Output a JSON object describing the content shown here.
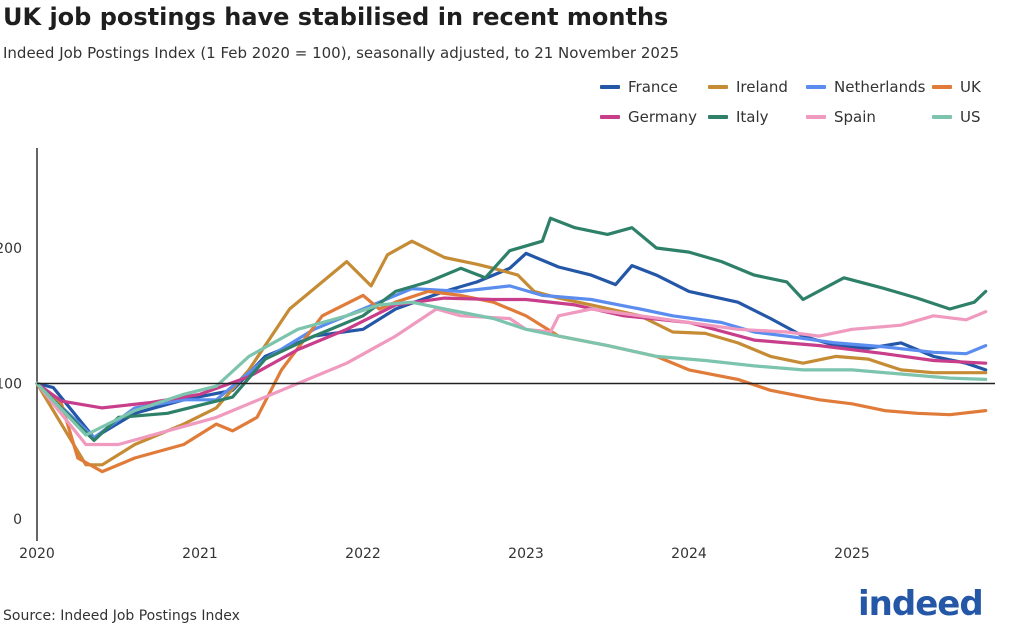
{
  "title": "UK job postings have stabilised in recent months",
  "subtitle": "Indeed Job Postings Index (1 Feb 2020 = 100), seasonally adjusted, to 21 November 2025",
  "source": "Source: Indeed Job Postings Index",
  "logo_text": "indeed",
  "chart_data": {
    "type": "line",
    "title": "UK job postings have stabilised in recent months",
    "xlabel": "",
    "ylabel": "",
    "xlim": [
      2020,
      2025.9
    ],
    "ylim": [
      0,
      273
    ],
    "x_ticks": [
      "2020",
      "2021",
      "2022",
      "2023",
      "2024",
      "2025"
    ],
    "y_ticks": [
      "0",
      "100",
      "200"
    ],
    "reference_line": 100,
    "grid": false,
    "legend_placement": "top-right",
    "series": [
      {
        "name": "France",
        "color": "#2457a8",
        "points": [
          [
            2020,
            100
          ],
          [
            2020.1,
            97
          ],
          [
            2020.35,
            60
          ],
          [
            2020.6,
            78
          ],
          [
            2020.9,
            88
          ],
          [
            2021.2,
            95
          ],
          [
            2021.4,
            120
          ],
          [
            2021.7,
            135
          ],
          [
            2022,
            140
          ],
          [
            2022.2,
            155
          ],
          [
            2022.5,
            168
          ],
          [
            2022.7,
            175
          ],
          [
            2022.9,
            185
          ],
          [
            2023.0,
            196
          ],
          [
            2023.2,
            186
          ],
          [
            2023.4,
            180
          ],
          [
            2023.55,
            173
          ],
          [
            2023.65,
            187
          ],
          [
            2023.8,
            180
          ],
          [
            2024.0,
            168
          ],
          [
            2024.3,
            160
          ],
          [
            2024.5,
            148
          ],
          [
            2024.7,
            135
          ],
          [
            2024.9,
            128
          ],
          [
            2025.1,
            126
          ],
          [
            2025.3,
            130
          ],
          [
            2025.5,
            120
          ],
          [
            2025.7,
            115
          ],
          [
            2025.82,
            110
          ]
        ]
      },
      {
        "name": "Ireland",
        "color": "#c58b35",
        "points": [
          [
            2020,
            100
          ],
          [
            2020.3,
            40
          ],
          [
            2020.4,
            40
          ],
          [
            2020.6,
            55
          ],
          [
            2020.9,
            70
          ],
          [
            2021.1,
            82
          ],
          [
            2021.3,
            110
          ],
          [
            2021.55,
            155
          ],
          [
            2021.8,
            180
          ],
          [
            2021.9,
            190
          ],
          [
            2022.05,
            172
          ],
          [
            2022.15,
            195
          ],
          [
            2022.3,
            205
          ],
          [
            2022.5,
            193
          ],
          [
            2022.7,
            188
          ],
          [
            2022.8,
            185
          ],
          [
            2022.95,
            180
          ],
          [
            2023.05,
            168
          ],
          [
            2023.2,
            163
          ],
          [
            2023.4,
            158
          ],
          [
            2023.7,
            150
          ],
          [
            2023.9,
            138
          ],
          [
            2024.1,
            137
          ],
          [
            2024.3,
            130
          ],
          [
            2024.5,
            120
          ],
          [
            2024.7,
            115
          ],
          [
            2024.9,
            120
          ],
          [
            2025.1,
            118
          ],
          [
            2025.3,
            110
          ],
          [
            2025.5,
            108
          ],
          [
            2025.7,
            108
          ],
          [
            2025.82,
            108
          ]
        ]
      },
      {
        "name": "Netherlands",
        "color": "#5b8def",
        "points": [
          [
            2020,
            100
          ],
          [
            2020.35,
            60
          ],
          [
            2020.6,
            82
          ],
          [
            2020.9,
            88
          ],
          [
            2021.1,
            88
          ],
          [
            2021.4,
            118
          ],
          [
            2021.7,
            140
          ],
          [
            2022,
            155
          ],
          [
            2022.3,
            170
          ],
          [
            2022.6,
            168
          ],
          [
            2022.9,
            172
          ],
          [
            2023.1,
            165
          ],
          [
            2023.4,
            162
          ],
          [
            2023.7,
            155
          ],
          [
            2023.9,
            150
          ],
          [
            2024.2,
            145
          ],
          [
            2024.4,
            138
          ],
          [
            2024.6,
            135
          ],
          [
            2024.9,
            130
          ],
          [
            2025.2,
            127
          ],
          [
            2025.5,
            123
          ],
          [
            2025.7,
            122
          ],
          [
            2025.82,
            128
          ]
        ]
      },
      {
        "name": "UK",
        "color": "#e07b39",
        "points": [
          [
            2020,
            100
          ],
          [
            2020.15,
            85
          ],
          [
            2020.25,
            45
          ],
          [
            2020.4,
            35
          ],
          [
            2020.6,
            45
          ],
          [
            2020.9,
            55
          ],
          [
            2021.1,
            70
          ],
          [
            2021.2,
            65
          ],
          [
            2021.35,
            75
          ],
          [
            2021.5,
            110
          ],
          [
            2021.75,
            150
          ],
          [
            2022.0,
            165
          ],
          [
            2022.1,
            155
          ],
          [
            2022.2,
            160
          ],
          [
            2022.4,
            168
          ],
          [
            2022.6,
            165
          ],
          [
            2022.8,
            160
          ],
          [
            2023.0,
            150
          ],
          [
            2023.2,
            135
          ],
          [
            2023.5,
            128
          ],
          [
            2023.8,
            120
          ],
          [
            2024.0,
            110
          ],
          [
            2024.3,
            103
          ],
          [
            2024.5,
            95
          ],
          [
            2024.8,
            88
          ],
          [
            2025.0,
            85
          ],
          [
            2025.2,
            80
          ],
          [
            2025.4,
            78
          ],
          [
            2025.6,
            77
          ],
          [
            2025.82,
            80
          ]
        ]
      },
      {
        "name": "Germany",
        "color": "#c83e8a",
        "points": [
          [
            2020,
            100
          ],
          [
            2020.15,
            87
          ],
          [
            2020.4,
            82
          ],
          [
            2020.7,
            86
          ],
          [
            2021.0,
            92
          ],
          [
            2021.3,
            105
          ],
          [
            2021.6,
            125
          ],
          [
            2021.9,
            140
          ],
          [
            2022.2,
            158
          ],
          [
            2022.5,
            163
          ],
          [
            2022.8,
            162
          ],
          [
            2023.0,
            162
          ],
          [
            2023.3,
            158
          ],
          [
            2023.6,
            150
          ],
          [
            2024.0,
            145
          ],
          [
            2024.4,
            132
          ],
          [
            2024.8,
            128
          ],
          [
            2025.2,
            122
          ],
          [
            2025.5,
            117
          ],
          [
            2025.82,
            115
          ]
        ]
      },
      {
        "name": "Italy",
        "color": "#2e8069",
        "points": [
          [
            2020,
            100
          ],
          [
            2020.35,
            58
          ],
          [
            2020.5,
            75
          ],
          [
            2020.8,
            78
          ],
          [
            2021.2,
            90
          ],
          [
            2021.4,
            118
          ],
          [
            2021.7,
            135
          ],
          [
            2022,
            150
          ],
          [
            2022.2,
            168
          ],
          [
            2022.4,
            175
          ],
          [
            2022.6,
            185
          ],
          [
            2022.75,
            178
          ],
          [
            2022.9,
            198
          ],
          [
            2023.1,
            205
          ],
          [
            2023.15,
            222
          ],
          [
            2023.3,
            215
          ],
          [
            2023.5,
            210
          ],
          [
            2023.65,
            215
          ],
          [
            2023.8,
            200
          ],
          [
            2024.0,
            197
          ],
          [
            2024.2,
            190
          ],
          [
            2024.4,
            180
          ],
          [
            2024.6,
            175
          ],
          [
            2024.7,
            162
          ],
          [
            2024.95,
            178
          ],
          [
            2025.2,
            170
          ],
          [
            2025.4,
            163
          ],
          [
            2025.6,
            155
          ],
          [
            2025.75,
            160
          ],
          [
            2025.82,
            168
          ]
        ]
      },
      {
        "name": "Spain",
        "color": "#f09ac0",
        "points": [
          [
            2020,
            100
          ],
          [
            2020.3,
            55
          ],
          [
            2020.5,
            55
          ],
          [
            2020.8,
            65
          ],
          [
            2021.1,
            75
          ],
          [
            2021.3,
            85
          ],
          [
            2021.6,
            100
          ],
          [
            2021.9,
            115
          ],
          [
            2022.2,
            135
          ],
          [
            2022.45,
            155
          ],
          [
            2022.6,
            150
          ],
          [
            2022.9,
            148
          ],
          [
            2023.0,
            140
          ],
          [
            2023.15,
            138
          ],
          [
            2023.2,
            150
          ],
          [
            2023.4,
            155
          ],
          [
            2023.7,
            150
          ],
          [
            2024.0,
            145
          ],
          [
            2024.3,
            140
          ],
          [
            2024.6,
            138
          ],
          [
            2024.8,
            135
          ],
          [
            2025.0,
            140
          ],
          [
            2025.3,
            143
          ],
          [
            2025.5,
            150
          ],
          [
            2025.7,
            147
          ],
          [
            2025.82,
            153
          ]
        ]
      },
      {
        "name": "US",
        "color": "#7cc4ae",
        "points": [
          [
            2020,
            100
          ],
          [
            2020.3,
            62
          ],
          [
            2020.6,
            80
          ],
          [
            2020.9,
            92
          ],
          [
            2021.1,
            98
          ],
          [
            2021.3,
            120
          ],
          [
            2021.6,
            140
          ],
          [
            2021.9,
            150
          ],
          [
            2022.1,
            158
          ],
          [
            2022.3,
            160
          ],
          [
            2022.5,
            155
          ],
          [
            2022.8,
            148
          ],
          [
            2023.0,
            140
          ],
          [
            2023.2,
            135
          ],
          [
            2023.5,
            128
          ],
          [
            2023.8,
            120
          ],
          [
            2024.1,
            117
          ],
          [
            2024.4,
            113
          ],
          [
            2024.7,
            110
          ],
          [
            2025.0,
            110
          ],
          [
            2025.3,
            107
          ],
          [
            2025.6,
            104
          ],
          [
            2025.82,
            103
          ]
        ]
      }
    ],
    "legend_order": [
      0,
      1,
      2,
      3,
      4,
      5,
      6,
      7
    ]
  }
}
